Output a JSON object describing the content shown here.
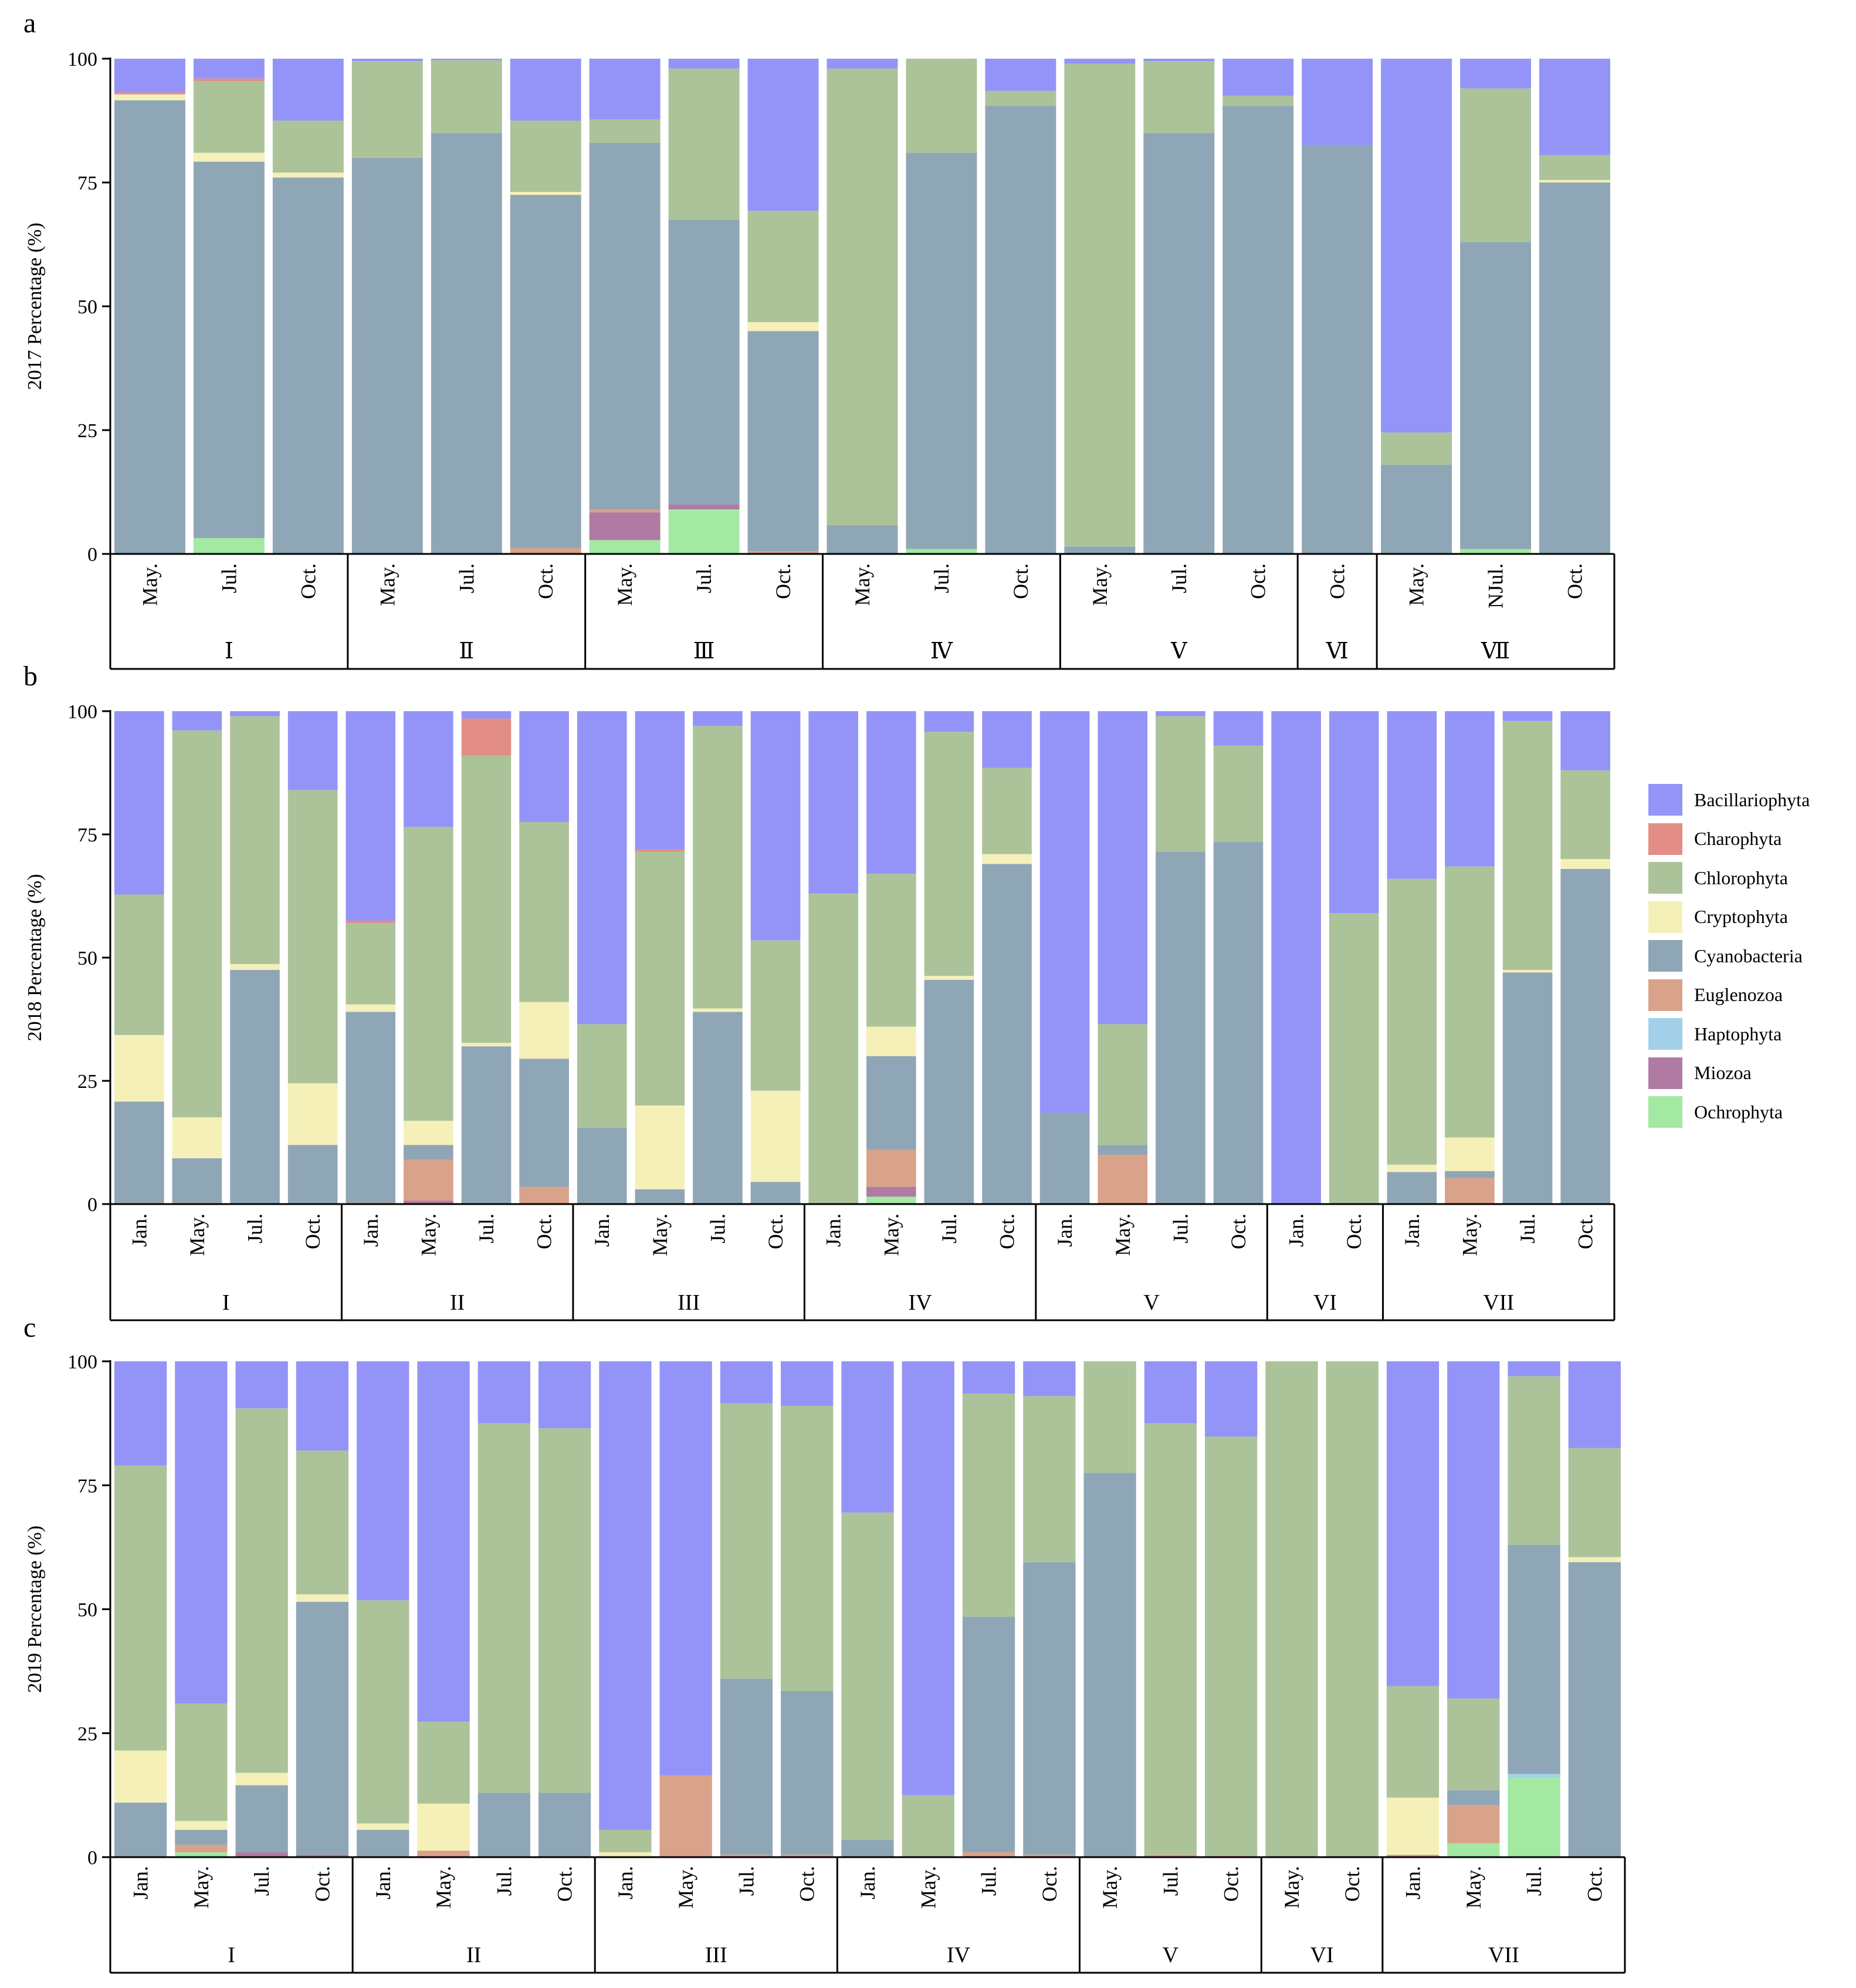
{
  "colors": {
    "Bacillariophyta": "#9494f8",
    "Charophyta": "#e28d86",
    "Chlorophyta": "#acc39a",
    "Cryptophyta": "#f4f0b8",
    "Cyanobacteria": "#8fa6b6",
    "Euglenozoa": "#d9a28a",
    "Haptophyta": "#a3cfe8",
    "Miozoa": "#b07ba3",
    "Ochrophyta": "#a3e8a3"
  },
  "legend": [
    "Bacillariophyta",
    "Charophyta",
    "Chlorophyta",
    "Cryptophyta",
    "Cyanobacteria",
    "Euglenozoa",
    "Haptophyta",
    "Miozoa",
    "Ochrophyta"
  ],
  "chart_data": [
    {
      "type": "bar",
      "panel_label": "a",
      "ylabel": "2017 Percentage (%)",
      "ylim": [
        0,
        100
      ],
      "yticks": [
        "0",
        "25",
        "50",
        "75",
        "100"
      ],
      "groups": [
        {
          "name": "Ⅰ",
          "bars": [
            {
              "label": "May.",
              "values": {
                "Charophyta": 0.4,
                "Cyanobacteria": 91.6,
                "Cryptophyta": 1.2,
                "Bacillariophyta": 6.8
              }
            },
            {
              "label": "Jul.",
              "values": {
                "Ochrophyta": 3.2,
                "Charophyta": 0.5,
                "Cyanobacteria": 76,
                "Cryptophyta": 1.8,
                "Chlorophyta": 14.5,
                "Bacillariophyta": 4
              }
            },
            {
              "label": "Oct.",
              "values": {
                "Cyanobacteria": 76,
                "Cryptophyta": 1,
                "Chlorophyta": 10.5,
                "Bacillariophyta": 12.5
              }
            }
          ]
        },
        {
          "name": "Ⅱ",
          "bars": [
            {
              "label": "May.",
              "values": {
                "Cyanobacteria": 80,
                "Chlorophyta": 19.5,
                "Bacillariophyta": 0.5
              }
            },
            {
              "label": "Jul.",
              "values": {
                "Cyanobacteria": 85,
                "Chlorophyta": 14.7,
                "Bacillariophyta": 0.3
              }
            },
            {
              "label": "Oct.",
              "values": {
                "Euglenozoa": 1.2,
                "Cyanobacteria": 71.3,
                "Cryptophyta": 0.6,
                "Chlorophyta": 14.4,
                "Bacillariophyta": 12.5
              }
            }
          ]
        },
        {
          "name": "Ⅲ",
          "bars": [
            {
              "label": "May.",
              "values": {
                "Ochrophyta": 2.8,
                "Miozoa": 5.6,
                "Euglenozoa": 0.6,
                "Cyanobacteria": 74,
                "Chlorophyta": 4.7,
                "Bacillariophyta": 12.3
              }
            },
            {
              "label": "Jul.",
              "values": {
                "Ochrophyta": 9,
                "Miozoa": 1,
                "Cyanobacteria": 57.5,
                "Chlorophyta": 30.5,
                "Bacillariophyta": 2
              }
            },
            {
              "label": "Oct.",
              "values": {
                "Euglenozoa": 0.5,
                "Cyanobacteria": 44.5,
                "Cryptophyta": 1.8,
                "Chlorophyta": 22.5,
                "Bacillariophyta": 30.7
              }
            }
          ]
        },
        {
          "name": "Ⅳ",
          "bars": [
            {
              "label": "May.",
              "values": {
                "Cyanobacteria": 5.8,
                "Chlorophyta": 92.2,
                "Bacillariophyta": 2
              }
            },
            {
              "label": "Jul.",
              "values": {
                "Ochrophyta": 1,
                "Cyanobacteria": 80,
                "Chlorophyta": 19,
                "Bacillariophyta": 0
              }
            },
            {
              "label": "Oct.",
              "values": {
                "Cyanobacteria": 90.5,
                "Chlorophyta": 3,
                "Bacillariophyta": 6.5
              }
            }
          ]
        },
        {
          "name": "Ⅴ",
          "bars": [
            {
              "label": "May.",
              "values": {
                "Cyanobacteria": 1.5,
                "Chlorophyta": 97.5,
                "Bacillariophyta": 1
              }
            },
            {
              "label": "Jul.",
              "values": {
                "Cyanobacteria": 85,
                "Chlorophyta": 14.5,
                "Bacillariophyta": 0.5
              }
            },
            {
              "label": "Oct.",
              "values": {
                "Cyanobacteria": 90.5,
                "Chlorophyta": 2,
                "Bacillariophyta": 7.5
              }
            }
          ]
        },
        {
          "name": "Ⅵ",
          "bars": [
            {
              "label": "Oct.",
              "values": {
                "Cyanobacteria": 82.5,
                "Bacillariophyta": 17.5
              }
            }
          ]
        },
        {
          "name": "Ⅶ",
          "bars": [
            {
              "label": "May.",
              "values": {
                "Cyanobacteria": 18,
                "Chlorophyta": 6.5,
                "Bacillariophyta": 75.5
              }
            },
            {
              "label": "NJul.",
              "values": {
                "Ochrophyta": 1,
                "Cyanobacteria": 62,
                "Chlorophyta": 31,
                "Bacillariophyta": 6
              }
            },
            {
              "label": "Oct.",
              "values": {
                "Cyanobacteria": 75,
                "Cryptophyta": 0.5,
                "Chlorophyta": 5,
                "Bacillariophyta": 19.5
              }
            }
          ]
        }
      ]
    },
    {
      "type": "bar",
      "panel_label": "b",
      "ylabel": "2018 Percentage (%)",
      "ylim": [
        0,
        100
      ],
      "yticks": [
        "0",
        "25",
        "50",
        "75",
        "100"
      ],
      "groups": [
        {
          "name": "I",
          "bars": [
            {
              "label": "Jan.",
              "values": {
                "Euglenozoa": 0.3,
                "Cyanobacteria": 20.5,
                "Cryptophyta": 13.5,
                "Chlorophyta": 28.5,
                "Bacillariophyta": 37.2
              }
            },
            {
              "label": "May.",
              "values": {
                "Euglenozoa": 0.3,
                "Cyanobacteria": 9,
                "Cryptophyta": 8.3,
                "Chlorophyta": 78.5,
                "Bacillariophyta": 3.9
              }
            },
            {
              "label": "Jul.",
              "values": {
                "Cyanobacteria": 47.5,
                "Cryptophyta": 1.2,
                "Chlorophyta": 50.3,
                "Bacillariophyta": 1
              }
            },
            {
              "label": "Oct.",
              "values": {
                "Cyanobacteria": 12,
                "Cryptophyta": 12.5,
                "Chlorophyta": 59.5,
                "Bacillariophyta": 16
              }
            }
          ]
        },
        {
          "name": "II",
          "bars": [
            {
              "label": "Jan.",
              "values": {
                "Euglenozoa": 0.3,
                "Cyanobacteria": 38.7,
                "Cryptophyta": 1.5,
                "Chlorophyta": 16.5,
                "Charophyta": 0.5,
                "Bacillariophyta": 42.5
              }
            },
            {
              "label": "May.",
              "values": {
                "Miozoa": 0.7,
                "Euglenozoa": 8.3,
                "Cyanobacteria": 3,
                "Cryptophyta": 4.9,
                "Chlorophyta": 59.6,
                "Bacillariophyta": 23.5
              }
            },
            {
              "label": "Jul.",
              "values": {
                "Cyanobacteria": 32,
                "Cryptophyta": 0.7,
                "Chlorophyta": 58.3,
                "Charophyta": 7.5,
                "Bacillariophyta": 1.5
              }
            },
            {
              "label": "Oct.",
              "values": {
                "Euglenozoa": 3.5,
                "Cyanobacteria": 26,
                "Cryptophyta": 11.5,
                "Chlorophyta": 36.5,
                "Bacillariophyta": 22.5
              }
            }
          ]
        },
        {
          "name": "III",
          "bars": [
            {
              "label": "Jan.",
              "values": {
                "Cyanobacteria": 15.5,
                "Chlorophyta": 21,
                "Bacillariophyta": 63.5
              }
            },
            {
              "label": "May.",
              "values": {
                "Cyanobacteria": 3,
                "Cryptophyta": 17,
                "Chlorophyta": 51.5,
                "Charophyta": 0.5,
                "Bacillariophyta": 28
              }
            },
            {
              "label": "Jul.",
              "values": {
                "Cyanobacteria": 39,
                "Cryptophyta": 0.7,
                "Chlorophyta": 57.3,
                "Bacillariophyta": 3
              }
            },
            {
              "label": "Oct.",
              "values": {
                "Cyanobacteria": 4.5,
                "Cryptophyta": 18.5,
                "Chlorophyta": 30.5,
                "Bacillariophyta": 46.5
              }
            }
          ]
        },
        {
          "name": "IV",
          "bars": [
            {
              "label": "Jan.",
              "values": {
                "Chlorophyta": 63,
                "Bacillariophyta": 37
              }
            },
            {
              "label": "May.",
              "values": {
                "Ochrophyta": 1.5,
                "Miozoa": 2,
                "Euglenozoa": 7.5,
                "Cyanobacteria": 19,
                "Cryptophyta": 6,
                "Chlorophyta": 31,
                "Bacillariophyta": 33
              }
            },
            {
              "label": "Jul.",
              "values": {
                "Cyanobacteria": 45.5,
                "Cryptophyta": 0.8,
                "Chlorophyta": 49.5,
                "Bacillariophyta": 4.2
              }
            },
            {
              "label": "Oct.",
              "values": {
                "Cyanobacteria": 69,
                "Cryptophyta": 2,
                "Chlorophyta": 17.5,
                "Bacillariophyta": 11.5
              }
            }
          ]
        },
        {
          "name": "V",
          "bars": [
            {
              "label": "Jan.",
              "values": {
                "Cyanobacteria": 18.5,
                "Bacillariophyta": 81.5
              }
            },
            {
              "label": "May.",
              "values": {
                "Euglenozoa": 10,
                "Cyanobacteria": 2,
                "Chlorophyta": 24.5,
                "Bacillariophyta": 63.5
              }
            },
            {
              "label": "Jul.",
              "values": {
                "Cyanobacteria": 71.5,
                "Chlorophyta": 27.5,
                "Bacillariophyta": 1
              }
            },
            {
              "label": "Oct.",
              "values": {
                "Cyanobacteria": 73.5,
                "Chlorophyta": 19.5,
                "Bacillariophyta": 7
              }
            }
          ]
        },
        {
          "name": "VI",
          "bars": [
            {
              "label": "Jan.",
              "values": {
                "Bacillariophyta": 100
              }
            },
            {
              "label": "Oct.",
              "values": {
                "Chlorophyta": 59,
                "Bacillariophyta": 41
              }
            }
          ]
        },
        {
          "name": "VII",
          "bars": [
            {
              "label": "Jan.",
              "values": {
                "Cyanobacteria": 6.5,
                "Cryptophyta": 1.5,
                "Chlorophyta": 58,
                "Bacillariophyta": 34
              }
            },
            {
              "label": "May.",
              "values": {
                "Euglenozoa": 5.3,
                "Cyanobacteria": 1.4,
                "Cryptophyta": 6.8,
                "Chlorophyta": 55,
                "Bacillariophyta": 31.5
              }
            },
            {
              "label": "Jul.",
              "values": {
                "Cyanobacteria": 47,
                "Cryptophyta": 0.5,
                "Chlorophyta": 50.5,
                "Bacillariophyta": 2
              }
            },
            {
              "label": "Oct.",
              "values": {
                "Cyanobacteria": 68,
                "Cryptophyta": 2,
                "Chlorophyta": 18,
                "Bacillariophyta": 12
              }
            }
          ]
        }
      ]
    },
    {
      "type": "bar",
      "panel_label": "c",
      "ylabel": "2019 Percentage (%)",
      "ylim": [
        0,
        100
      ],
      "yticks": [
        "0",
        "25",
        "50",
        "75",
        "100"
      ],
      "groups": [
        {
          "name": "I",
          "bars": [
            {
              "label": "Jan.",
              "values": {
                "Cyanobacteria": 11,
                "Cryptophyta": 10.5,
                "Chlorophyta": 57.5,
                "Bacillariophyta": 21
              }
            },
            {
              "label": "May.",
              "values": {
                "Ochrophyta": 1,
                "Euglenozoa": 1.5,
                "Cyanobacteria": 3,
                "Cryptophyta": 1.8,
                "Chlorophyta": 23.7,
                "Bacillariophyta": 69
              }
            },
            {
              "label": "Jul.",
              "values": {
                "Miozoa": 1,
                "Cyanobacteria": 13.5,
                "Cryptophyta": 2.5,
                "Chlorophyta": 73.5,
                "Bacillariophyta": 9.5
              }
            },
            {
              "label": "Oct.",
              "values": {
                "Miozoa": 0.5,
                "Cyanobacteria": 51,
                "Cryptophyta": 1.5,
                "Chlorophyta": 29,
                "Bacillariophyta": 18
              }
            }
          ]
        },
        {
          "name": "II",
          "bars": [
            {
              "label": "Jan.",
              "values": {
                "Cyanobacteria": 5.5,
                "Cryptophyta": 1.3,
                "Chlorophyta": 45,
                "Bacillariophyta": 48.2
              }
            },
            {
              "label": "May.",
              "values": {
                "Euglenozoa": 1.3,
                "Cryptophyta": 9.5,
                "Chlorophyta": 16.5,
                "Bacillariophyta": 72.7
              }
            },
            {
              "label": "Jul.",
              "values": {
                "Cyanobacteria": 13,
                "Chlorophyta": 74.5,
                "Bacillariophyta": 12.5
              }
            },
            {
              "label": "Oct.",
              "values": {
                "Cyanobacteria": 13,
                "Chlorophyta": 73.5,
                "Bacillariophyta": 13.5
              }
            }
          ]
        },
        {
          "name": "III",
          "bars": [
            {
              "label": "Jan.",
              "values": {
                "Cryptophyta": 1,
                "Chlorophyta": 4.5,
                "Bacillariophyta": 94.5
              }
            },
            {
              "label": "May.",
              "values": {
                "Euglenozoa": 16.5,
                "Bacillariophyta": 83.5
              }
            },
            {
              "label": "Jul.",
              "values": {
                "Euglenozoa": 0.5,
                "Cyanobacteria": 35.5,
                "Chlorophyta": 55.5,
                "Bacillariophyta": 8.5
              }
            },
            {
              "label": "Oct.",
              "values": {
                "Euglenozoa": 0.5,
                "Cyanobacteria": 33,
                "Chlorophyta": 57.5,
                "Bacillariophyta": 9
              }
            }
          ]
        },
        {
          "name": "IV",
          "bars": [
            {
              "label": "Jan.",
              "values": {
                "Cyanobacteria": 3.5,
                "Chlorophyta": 66,
                "Bacillariophyta": 30.5
              }
            },
            {
              "label": "May.",
              "values": {
                "Chlorophyta": 12.5,
                "Bacillariophyta": 87.5
              }
            },
            {
              "label": "Jul.",
              "values": {
                "Euglenozoa": 1,
                "Cyanobacteria": 47.5,
                "Chlorophyta": 45,
                "Bacillariophyta": 6.5
              }
            },
            {
              "label": "Oct.",
              "values": {
                "Euglenozoa": 0.5,
                "Cyanobacteria": 59,
                "Chlorophyta": 33.5,
                "Bacillariophyta": 7
              }
            }
          ]
        },
        {
          "name": "V",
          "bars": [
            {
              "label": "May.",
              "values": {
                "Cyanobacteria": 77.5,
                "Chlorophyta": 22.5
              }
            },
            {
              "label": "Jul.",
              "values": {
                "Euglenozoa": 0.5,
                "Chlorophyta": 87,
                "Bacillariophyta": 12.5
              }
            },
            {
              "label": "Oct.",
              "values": {
                "Euglenozoa": 0.3,
                "Chlorophyta": 84.5,
                "Bacillariophyta": 15.2
              }
            }
          ]
        },
        {
          "name": "VI",
          "bars": [
            {
              "label": "May.",
              "values": {
                "Chlorophyta": 100
              }
            },
            {
              "label": "Oct.",
              "values": {
                "Chlorophyta": 100
              }
            }
          ]
        },
        {
          "name": "VII",
          "bars": [
            {
              "label": "Jan.",
              "values": {
                "Euglenozoa": 0.5,
                "Cryptophyta": 11.5,
                "Chlorophyta": 22.5,
                "Bacillariophyta": 65.5
              }
            },
            {
              "label": "May.",
              "values": {
                "Ochrophyta": 2.8,
                "Euglenozoa": 7.7,
                "Cyanobacteria": 3,
                "Chlorophyta": 18.5,
                "Bacillariophyta": 68
              }
            },
            {
              "label": "Jul.",
              "values": {
                "Ochrophyta": 16,
                "Haptophyta": 0.8,
                "Cyanobacteria": 46.2,
                "Chlorophyta": 34,
                "Bacillariophyta": 3
              }
            },
            {
              "label": "Oct.",
              "values": {
                "Cyanobacteria": 59.5,
                "Cryptophyta": 1,
                "Chlorophyta": 22,
                "Bacillariophyta": 17.5
              }
            }
          ]
        }
      ]
    }
  ]
}
